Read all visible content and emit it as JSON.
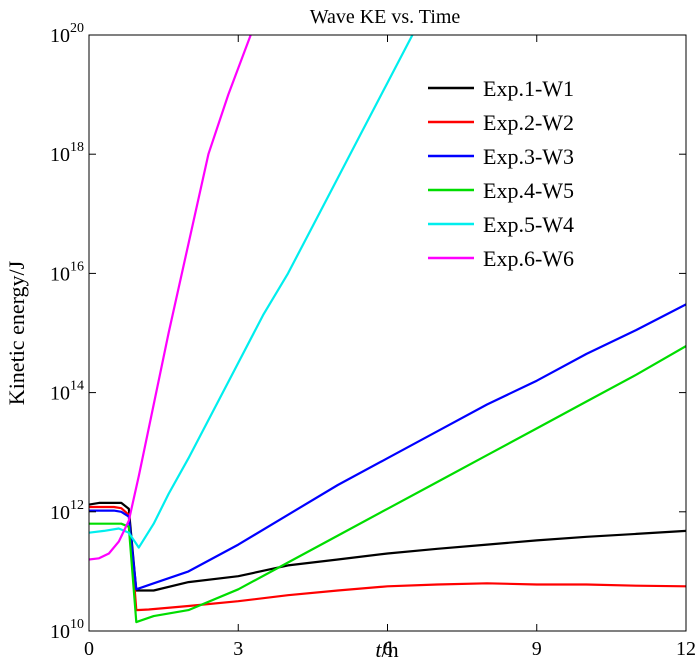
{
  "chart_data": {
    "type": "line",
    "title": "Wave KE vs. Time",
    "xlabel_italic": "t",
    "xlabel_rest": "/h",
    "ylabel": "Kinetic energy/J",
    "xlim": [
      0,
      12
    ],
    "ylim_log10": [
      10,
      20
    ],
    "y_scale": "log",
    "x_ticks": [
      0,
      3,
      6,
      9,
      12
    ],
    "x_tick_labels": [
      "0",
      "3",
      "6",
      "9",
      "12"
    ],
    "y_ticks_exp": [
      10,
      12,
      14,
      16,
      18,
      20
    ],
    "y_tick_base": "10",
    "y_tick_exponents": [
      "10",
      "12",
      "14",
      "16",
      "18",
      "20"
    ],
    "grid": false,
    "legend_position": "top-right",
    "series": [
      {
        "name": "Exp.1-W1",
        "color": "#000000",
        "x": [
          0,
          0.2,
          0.5,
          0.65,
          0.8,
          0.95,
          1.3,
          2.0,
          3.0,
          4.0,
          5.0,
          6.0,
          7.0,
          8.0,
          9.0,
          10.0,
          11.0,
          12.0
        ],
        "log10y": [
          12.12,
          12.15,
          12.15,
          12.15,
          12.05,
          10.68,
          10.68,
          10.82,
          10.92,
          11.1,
          11.2,
          11.3,
          11.38,
          11.45,
          11.52,
          11.58,
          11.63,
          11.68
        ]
      },
      {
        "name": "Exp.2-W2",
        "color": "#ff0000",
        "x": [
          0,
          0.2,
          0.5,
          0.65,
          0.8,
          0.95,
          1.2,
          2.0,
          3.0,
          4.0,
          5.0,
          6.0,
          7.0,
          8.0,
          9.0,
          10.0,
          11.0,
          12.0
        ],
        "log10y": [
          12.08,
          12.08,
          12.08,
          12.06,
          11.95,
          10.35,
          10.36,
          10.42,
          10.5,
          10.6,
          10.68,
          10.75,
          10.78,
          10.8,
          10.78,
          10.78,
          10.76,
          10.75
        ]
      },
      {
        "name": "Exp.3-W3",
        "color": "#0000ff",
        "x": [
          0,
          0.2,
          0.5,
          0.65,
          0.8,
          0.95,
          1.3,
          2.0,
          3.0,
          4.0,
          5.0,
          6.0,
          7.0,
          8.0,
          9.0,
          10.0,
          11.0,
          12.0
        ],
        "log10y": [
          12.02,
          12.02,
          12.02,
          12.0,
          11.92,
          10.7,
          10.8,
          11.0,
          11.45,
          11.95,
          12.45,
          12.9,
          13.35,
          13.8,
          14.2,
          14.65,
          15.05,
          15.48
        ]
      },
      {
        "name": "Exp.4-W5",
        "color": "#00dd00",
        "x": [
          0,
          0.2,
          0.5,
          0.65,
          0.8,
          0.95,
          1.3,
          2.0,
          3.0,
          4.0,
          5.0,
          6.0,
          7.0,
          8.0,
          9.0,
          10.0,
          11.0,
          12.0
        ],
        "log10y": [
          11.8,
          11.8,
          11.8,
          11.8,
          11.75,
          10.15,
          10.25,
          10.35,
          10.7,
          11.15,
          11.6,
          12.05,
          12.5,
          12.95,
          13.4,
          13.85,
          14.3,
          14.78
        ]
      },
      {
        "name": "Exp.5-W4",
        "color": "#00eeee",
        "x": [
          0,
          0.3,
          0.6,
          0.8,
          1.0,
          1.3,
          1.6,
          2.0,
          2.5,
          3.0,
          3.5,
          4.0,
          4.5,
          5.0,
          5.5,
          6.0,
          6.5
        ],
        "log10y": [
          11.65,
          11.68,
          11.72,
          11.65,
          11.4,
          11.8,
          12.3,
          12.9,
          13.7,
          14.5,
          15.3,
          16.0,
          16.8,
          17.6,
          18.4,
          19.2,
          20.0
        ]
      },
      {
        "name": "Exp.6-W6",
        "color": "#ff00ff",
        "x": [
          0,
          0.2,
          0.4,
          0.6,
          0.8,
          1.0,
          1.3,
          1.6,
          2.0,
          2.4,
          2.8,
          3.25
        ],
        "log10y": [
          11.2,
          11.22,
          11.3,
          11.5,
          11.85,
          12.6,
          13.8,
          15.0,
          16.5,
          18.0,
          19.0,
          20.0
        ]
      }
    ]
  }
}
